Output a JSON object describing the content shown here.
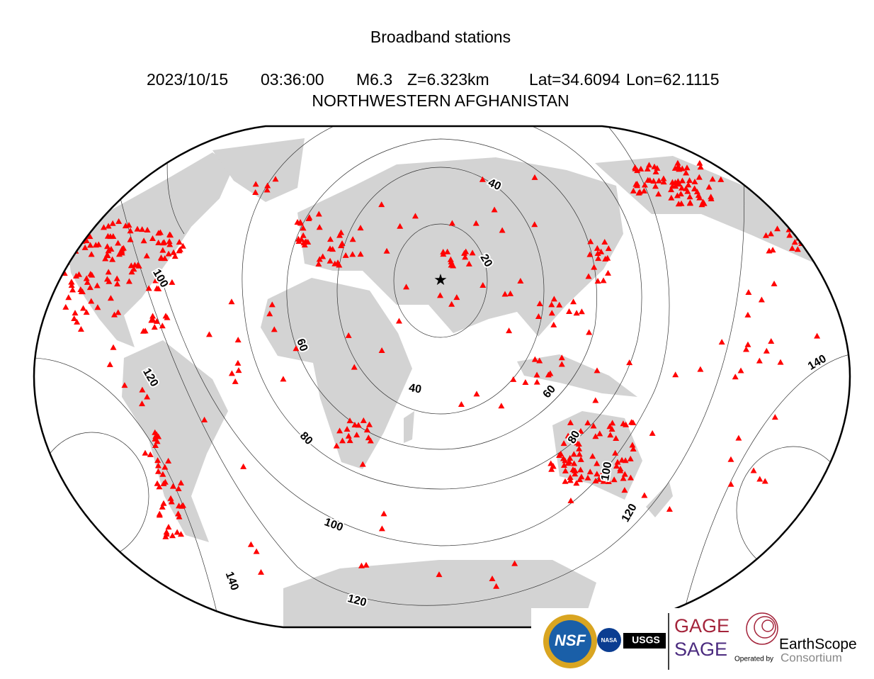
{
  "header": {
    "title": "Broadband stations",
    "event": {
      "date": "2023/10/15",
      "time": "03:36:00",
      "magnitude": "M6.3",
      "depth": "Z=6.323km",
      "lat": "Lat=34.6094",
      "lon": "Lon=62.1115"
    },
    "region": "NORTHWESTERN AFGHANISTAN"
  },
  "map": {
    "contour_labels": [
      "20",
      "40",
      "40",
      "60",
      "60",
      "80",
      "80",
      "100",
      "100",
      "100",
      "120",
      "120",
      "120",
      "140",
      "140"
    ]
  },
  "logos": {
    "nsf": "NSF",
    "nasa": "NASA",
    "usgs": "USGS",
    "gage": "GAGE",
    "sage": "SAGE",
    "operated_by": "Operated by",
    "earthscope": "EarthScope",
    "consortium": "Consortium"
  }
}
